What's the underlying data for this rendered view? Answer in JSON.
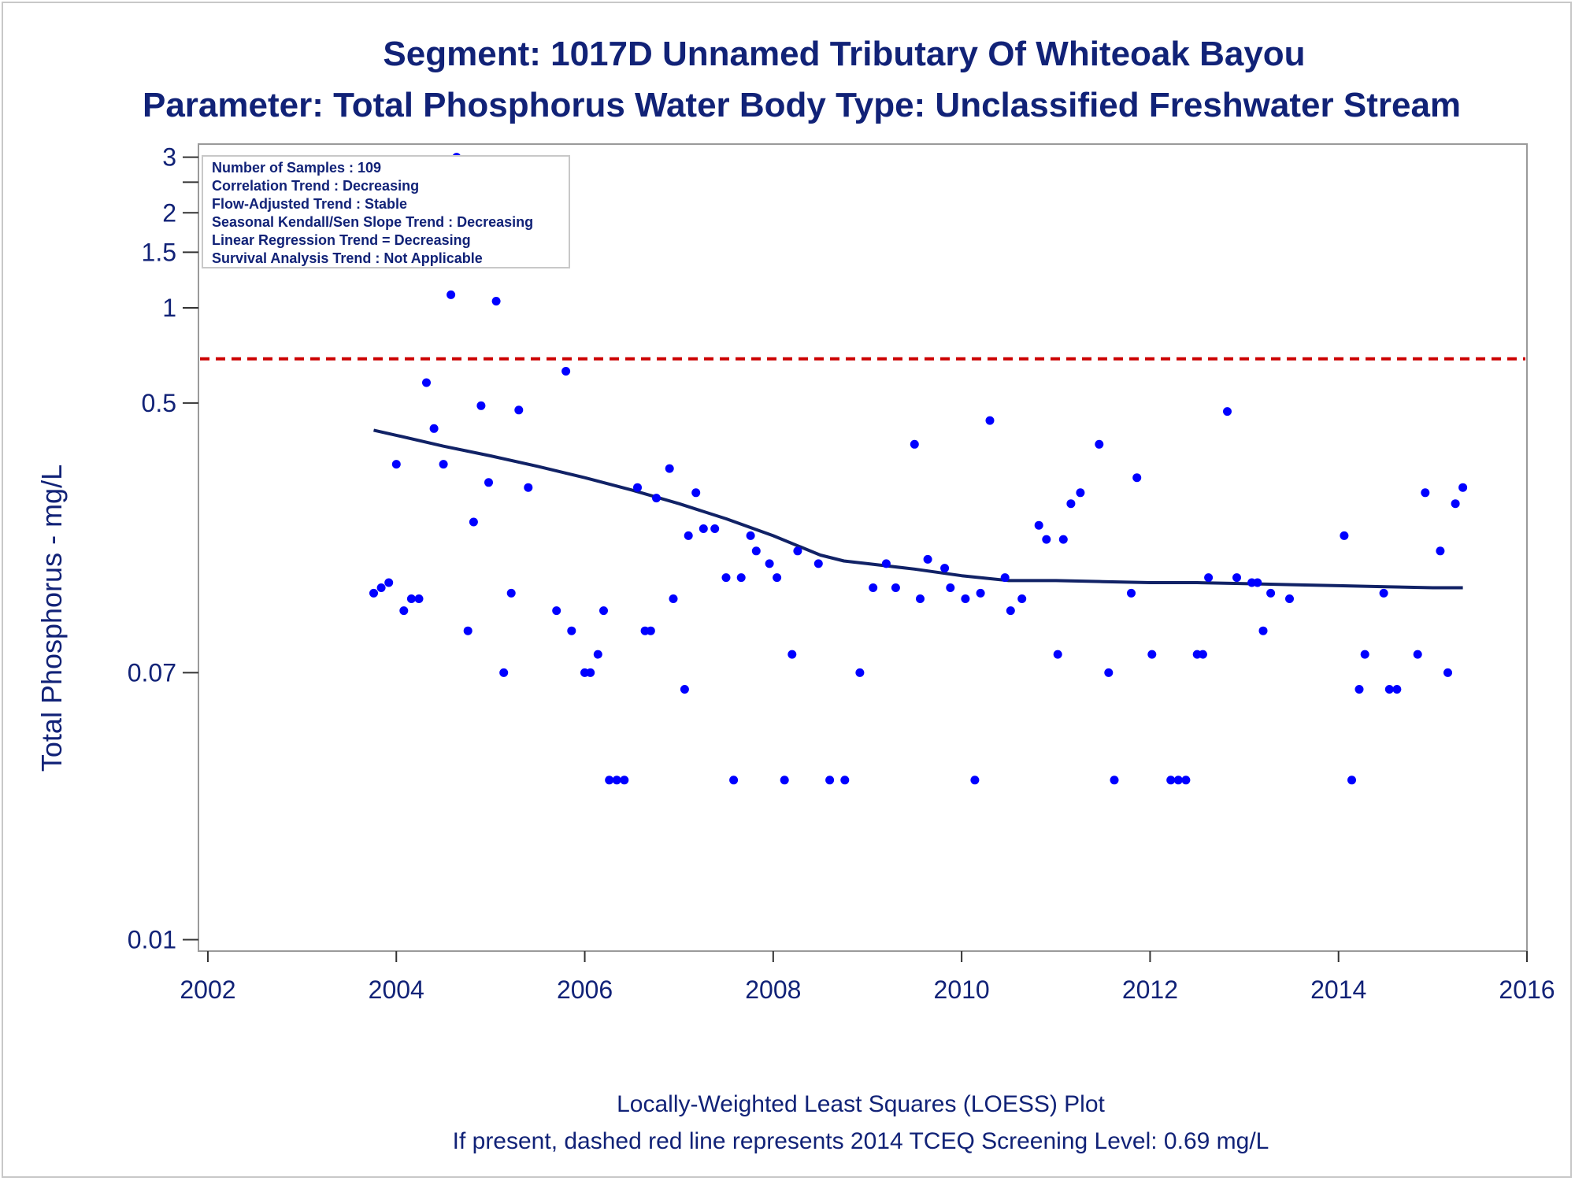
{
  "chart_data": {
    "type": "scatter",
    "title": "Segment: 1017D  Unnamed Tributary Of Whiteoak Bayou",
    "subtitle": "Parameter: Total Phosphorus   Water Body Type: Unclassified Freshwater Stream",
    "xlabel": "",
    "ylabel": "Total Phosphorus - mg/L",
    "footnotes": [
      "Locally-Weighted Least Squares (LOESS) Plot",
      "If present, dashed red line represents 2014 TCEQ Screening Level: 0.69 mg/L"
    ],
    "xlim": [
      2001.9,
      2016.0
    ],
    "ylim": [
      0.0092,
      3.3
    ],
    "yscale": "log",
    "x_ticks": [
      2002,
      2004,
      2006,
      2008,
      2010,
      2012,
      2014,
      2016
    ],
    "x_tick_labels": [
      "2002",
      "2004",
      "2006",
      "2008",
      "2010",
      "2012",
      "2014",
      "2016"
    ],
    "y_ticks": [
      0.01,
      0.07,
      0.5,
      1,
      1.5,
      2,
      3
    ],
    "y_tick_labels": [
      "0.01",
      "0.07",
      "0.5",
      "1",
      "1.5",
      "2",
      "3"
    ],
    "y_minor_ticks": [
      2.5
    ],
    "grid": false,
    "screening_level": {
      "value": 0.69,
      "color": "#cc0000",
      "style": "dashed"
    },
    "info_box": {
      "position": "top-left",
      "lines": [
        "Number of Samples : 109",
        "Correlation Trend : Decreasing",
        "Flow-Adjusted Trend : Stable",
        "Seasonal Kendall/Sen Slope Trend : Decreasing",
        "Linear Regression Trend = Decreasing",
        "Survival Analysis Trend : Not Applicable"
      ]
    },
    "series": [
      {
        "type": "scatter",
        "color": "#0000ff",
        "points": [
          [
            2003.76,
            0.125
          ],
          [
            2003.84,
            0.13
          ],
          [
            2003.92,
            0.135
          ],
          [
            2004.0,
            0.32
          ],
          [
            2004.08,
            0.11
          ],
          [
            2004.16,
            0.12
          ],
          [
            2004.24,
            0.12
          ],
          [
            2004.32,
            0.58
          ],
          [
            2004.4,
            0.415
          ],
          [
            2004.5,
            0.32
          ],
          [
            2004.58,
            1.1
          ],
          [
            2004.64,
            3.0
          ],
          [
            2004.76,
            0.095
          ],
          [
            2004.82,
            0.21
          ],
          [
            2004.9,
            0.49
          ],
          [
            2004.98,
            0.28
          ],
          [
            2005.06,
            1.05
          ],
          [
            2005.14,
            0.07
          ],
          [
            2005.22,
            0.125
          ],
          [
            2005.3,
            0.475
          ],
          [
            2005.4,
            0.27
          ],
          [
            2005.7,
            0.11
          ],
          [
            2005.8,
            0.63
          ],
          [
            2005.86,
            0.095
          ],
          [
            2006.0,
            0.07
          ],
          [
            2006.06,
            0.07
          ],
          [
            2006.14,
            0.08
          ],
          [
            2006.2,
            0.11
          ],
          [
            2006.26,
            0.032
          ],
          [
            2006.34,
            0.032
          ],
          [
            2006.42,
            0.032
          ],
          [
            2006.56,
            0.27
          ],
          [
            2006.64,
            0.095
          ],
          [
            2006.7,
            0.095
          ],
          [
            2006.76,
            0.25
          ],
          [
            2006.9,
            0.31
          ],
          [
            2006.94,
            0.12
          ],
          [
            2007.06,
            0.062
          ],
          [
            2007.1,
            0.19
          ],
          [
            2007.18,
            0.26
          ],
          [
            2007.26,
            0.2
          ],
          [
            2007.38,
            0.2
          ],
          [
            2007.5,
            0.14
          ],
          [
            2007.58,
            0.032
          ],
          [
            2007.66,
            0.14
          ],
          [
            2007.76,
            0.19
          ],
          [
            2007.82,
            0.17
          ],
          [
            2007.96,
            0.155
          ],
          [
            2008.04,
            0.14
          ],
          [
            2008.12,
            0.032
          ],
          [
            2008.2,
            0.08
          ],
          [
            2008.26,
            0.17
          ],
          [
            2008.48,
            0.155
          ],
          [
            2008.6,
            0.032
          ],
          [
            2008.76,
            0.032
          ],
          [
            2008.92,
            0.07
          ],
          [
            2009.06,
            0.13
          ],
          [
            2009.2,
            0.155
          ],
          [
            2009.3,
            0.13
          ],
          [
            2009.5,
            0.37
          ],
          [
            2009.56,
            0.12
          ],
          [
            2009.64,
            0.16
          ],
          [
            2009.82,
            0.15
          ],
          [
            2009.88,
            0.13
          ],
          [
            2010.04,
            0.12
          ],
          [
            2010.14,
            0.032
          ],
          [
            2010.2,
            0.125
          ],
          [
            2010.3,
            0.44
          ],
          [
            2010.46,
            0.14
          ],
          [
            2010.52,
            0.11
          ],
          [
            2010.64,
            0.12
          ],
          [
            2010.82,
            0.205
          ],
          [
            2010.9,
            0.185
          ],
          [
            2011.02,
            0.08
          ],
          [
            2011.08,
            0.185
          ],
          [
            2011.16,
            0.24
          ],
          [
            2011.26,
            0.26
          ],
          [
            2011.46,
            0.37
          ],
          [
            2011.56,
            0.07
          ],
          [
            2011.62,
            0.032
          ],
          [
            2011.8,
            0.125
          ],
          [
            2011.86,
            0.29
          ],
          [
            2012.02,
            0.08
          ],
          [
            2012.22,
            0.032
          ],
          [
            2012.3,
            0.032
          ],
          [
            2012.38,
            0.032
          ],
          [
            2012.5,
            0.08
          ],
          [
            2012.56,
            0.08
          ],
          [
            2012.62,
            0.14
          ],
          [
            2012.82,
            0.47
          ],
          [
            2012.92,
            0.14
          ],
          [
            2013.08,
            0.135
          ],
          [
            2013.14,
            0.135
          ],
          [
            2013.2,
            0.095
          ],
          [
            2013.28,
            0.125
          ],
          [
            2013.48,
            0.12
          ],
          [
            2014.06,
            0.19
          ],
          [
            2014.14,
            0.032
          ],
          [
            2014.22,
            0.062
          ],
          [
            2014.28,
            0.08
          ],
          [
            2014.48,
            0.125
          ],
          [
            2014.54,
            0.062
          ],
          [
            2014.62,
            0.062
          ],
          [
            2014.84,
            0.08
          ],
          [
            2014.92,
            0.26
          ],
          [
            2015.08,
            0.17
          ],
          [
            2015.16,
            0.07
          ],
          [
            2015.24,
            0.24
          ],
          [
            2015.32,
            0.27
          ]
        ]
      },
      {
        "type": "line",
        "name": "LOESS",
        "color": "#112266",
        "points": [
          [
            2003.76,
            0.41
          ],
          [
            2004.0,
            0.395
          ],
          [
            2004.5,
            0.365
          ],
          [
            2005.0,
            0.34
          ],
          [
            2005.5,
            0.315
          ],
          [
            2006.0,
            0.29
          ],
          [
            2006.5,
            0.265
          ],
          [
            2007.0,
            0.24
          ],
          [
            2007.5,
            0.215
          ],
          [
            2008.0,
            0.19
          ],
          [
            2008.5,
            0.165
          ],
          [
            2008.75,
            0.158
          ],
          [
            2009.0,
            0.155
          ],
          [
            2009.5,
            0.149
          ],
          [
            2010.0,
            0.142
          ],
          [
            2010.5,
            0.137
          ],
          [
            2011.0,
            0.137
          ],
          [
            2011.5,
            0.136
          ],
          [
            2012.0,
            0.135
          ],
          [
            2012.5,
            0.135
          ],
          [
            2013.0,
            0.134
          ],
          [
            2013.5,
            0.133
          ],
          [
            2014.0,
            0.132
          ],
          [
            2014.5,
            0.131
          ],
          [
            2015.0,
            0.13
          ],
          [
            2015.32,
            0.13
          ]
        ]
      }
    ]
  }
}
